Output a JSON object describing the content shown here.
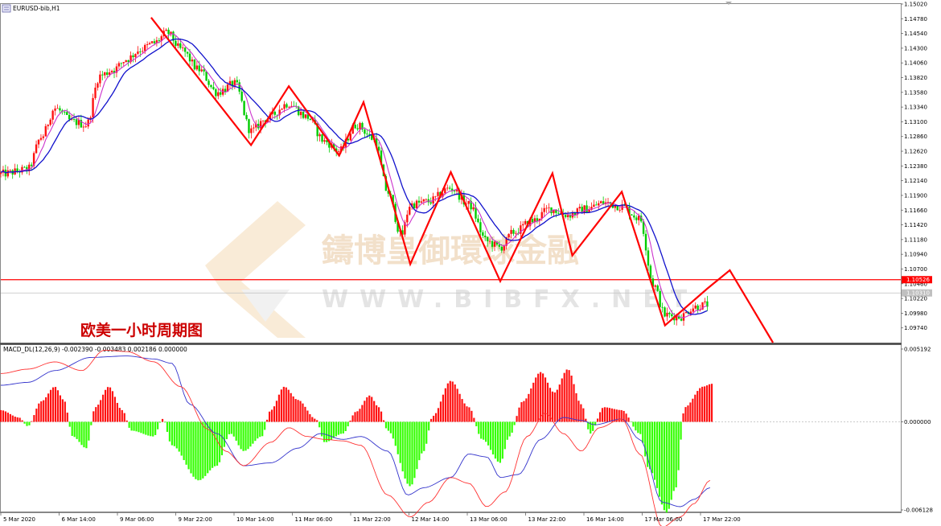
{
  "window": {
    "symbol_label": "EURUSD-bib,H1",
    "caption": "欧美一小时周期图",
    "watermark": {
      "brand": "鑄博皇御環球金融",
      "site": "WWW.BIBFX.NET"
    }
  },
  "colors": {
    "bull": "#ff1111",
    "bear": "#00cc00",
    "ma_fast": "#cc33cc",
    "ma_slow": "#1111cc",
    "zigzag": "#ff0000",
    "level_line": "#ff0000",
    "macd_line": "#3333cc",
    "signal_line": "#ff3333",
    "hist_pos": "#ff1111",
    "hist_neg": "#33ff00"
  },
  "chart_data": [
    {
      "type": "candlestick",
      "title": "EURUSD-bib,H1",
      "ylim": [
        1.095,
        1.1502
      ],
      "price_ticks": [
        "1.15020",
        "1.14780",
        "1.14540",
        "1.14300",
        "1.14060",
        "1.13820",
        "1.13580",
        "1.13340",
        "1.13100",
        "1.12860",
        "1.12620",
        "1.12380",
        "1.12140",
        "1.11900",
        "1.11660",
        "1.11420",
        "1.11180",
        "1.10940",
        "1.10700",
        "1.10460",
        "1.10220",
        "1.09980",
        "1.09740"
      ],
      "level_line": {
        "value": 1.10526,
        "label": "1.10526"
      },
      "current_price": {
        "value": 1.1031,
        "label": "1.10310"
      },
      "time_labels": [
        "5 Mar 2020",
        "6 Mar 14:00",
        "9 Mar 06:00",
        "9 Mar 22:00",
        "10 Mar 14:00",
        "11 Mar 06:00",
        "11 Mar 22:00",
        "12 Mar 14:00",
        "13 Mar 06:00",
        "13 Mar 22:00",
        "16 Mar 14:00",
        "17 Mar 06:00",
        "17 Mar 22:00"
      ],
      "zigzag_points": [
        {
          "t": 0.167,
          "v": 1.148
        },
        {
          "t": 0.278,
          "v": 1.1272
        },
        {
          "t": 0.32,
          "v": 1.1368
        },
        {
          "t": 0.376,
          "v": 1.1255
        },
        {
          "t": 0.403,
          "v": 1.1342
        },
        {
          "t": 0.455,
          "v": 1.1078
        },
        {
          "t": 0.5,
          "v": 1.1228
        },
        {
          "t": 0.555,
          "v": 1.105
        },
        {
          "t": 0.613,
          "v": 1.1226
        },
        {
          "t": 0.635,
          "v": 1.1092
        },
        {
          "t": 0.69,
          "v": 1.1196
        },
        {
          "t": 0.738,
          "v": 1.0978
        },
        {
          "t": 0.785,
          "v": 1.1038
        },
        {
          "t": 0.81,
          "v": 1.1068
        },
        {
          "t": 0.858,
          "v": 1.095
        }
      ],
      "series": [
        {
          "name": "EURUSD",
          "anchors": [
            [
              0.0,
              1.1225
            ],
            [
              0.03,
              1.1232
            ],
            [
              0.045,
              1.1285
            ],
            [
              0.06,
              1.1332
            ],
            [
              0.08,
              1.131
            ],
            [
              0.095,
              1.1305
            ],
            [
              0.11,
              1.1385
            ],
            [
              0.125,
              1.1395
            ],
            [
              0.14,
              1.1412
            ],
            [
              0.155,
              1.1428
            ],
            [
              0.17,
              1.1438
            ],
            [
              0.185,
              1.1455
            ],
            [
              0.2,
              1.1428
            ],
            [
              0.22,
              1.1395
            ],
            [
              0.24,
              1.1358
            ],
            [
              0.26,
              1.1372
            ],
            [
              0.278,
              1.1295
            ],
            [
              0.295,
              1.1315
            ],
            [
              0.32,
              1.134
            ],
            [
              0.34,
              1.1318
            ],
            [
              0.36,
              1.1278
            ],
            [
              0.376,
              1.1262
            ],
            [
              0.395,
              1.1305
            ],
            [
              0.415,
              1.1282
            ],
            [
              0.43,
              1.1195
            ],
            [
              0.445,
              1.1125
            ],
            [
              0.455,
              1.1175
            ],
            [
              0.475,
              1.118
            ],
            [
              0.5,
              1.1202
            ],
            [
              0.52,
              1.1175
            ],
            [
              0.54,
              1.1115
            ],
            [
              0.555,
              1.1105
            ],
            [
              0.57,
              1.113
            ],
            [
              0.59,
              1.1148
            ],
            [
              0.61,
              1.1168
            ],
            [
              0.63,
              1.1158
            ],
            [
              0.65,
              1.1168
            ],
            [
              0.67,
              1.1178
            ],
            [
              0.69,
              1.1172
            ],
            [
              0.71,
              1.1152
            ],
            [
              0.725,
              1.1045
            ],
            [
              0.738,
              1.0995
            ],
            [
              0.755,
              1.0992
            ],
            [
              0.77,
              1.1008
            ],
            [
              0.785,
              1.1012
            ]
          ]
        }
      ]
    },
    {
      "type": "macd",
      "title": "MACD_DL(12,26,9) -0.002390 -0.003483 0.002186 0.000000",
      "ylim": [
        -0.006128,
        0.005192
      ],
      "ticks": [
        "0.005192",
        "0.000000",
        "-0.006128"
      ],
      "series": [
        {
          "name": "histogram",
          "anchors": [
            [
              0.0,
              0.0008
            ],
            [
              0.02,
              0.0003
            ],
            [
              0.03,
              -0.0003
            ],
            [
              0.045,
              0.0014
            ],
            [
              0.06,
              0.0024
            ],
            [
              0.07,
              0.0015
            ],
            [
              0.08,
              -0.001
            ],
            [
              0.095,
              -0.0018
            ],
            [
              0.105,
              0.001
            ],
            [
              0.12,
              0.0024
            ],
            [
              0.135,
              0.0008
            ],
            [
              0.145,
              -0.0006
            ],
            [
              0.17,
              -0.001
            ],
            [
              0.18,
              0.0002
            ],
            [
              0.19,
              -0.0016
            ],
            [
              0.22,
              -0.004
            ],
            [
              0.24,
              -0.003
            ],
            [
              0.255,
              -0.0008
            ],
            [
              0.27,
              -0.002
            ],
            [
              0.29,
              -0.001
            ],
            [
              0.3,
              0.0008
            ],
            [
              0.315,
              0.0024
            ],
            [
              0.33,
              0.0015
            ],
            [
              0.35,
              0.0002
            ],
            [
              0.36,
              -0.0014
            ],
            [
              0.38,
              -0.0008
            ],
            [
              0.395,
              0.0007
            ],
            [
              0.41,
              0.0018
            ],
            [
              0.42,
              0.001
            ],
            [
              0.43,
              -0.0006
            ],
            [
              0.455,
              -0.0044
            ],
            [
              0.47,
              -0.002
            ],
            [
              0.48,
              0.0004
            ],
            [
              0.5,
              0.0028
            ],
            [
              0.52,
              0.001
            ],
            [
              0.535,
              -0.0012
            ],
            [
              0.555,
              -0.0028
            ],
            [
              0.565,
              -0.001
            ],
            [
              0.58,
              0.0014
            ],
            [
              0.6,
              0.0034
            ],
            [
              0.615,
              0.002
            ],
            [
              0.63,
              0.0036
            ],
            [
              0.645,
              0.0012
            ],
            [
              0.655,
              -0.0008
            ],
            [
              0.67,
              0.001
            ],
            [
              0.69,
              0.0008
            ],
            [
              0.71,
              -0.0008
            ],
            [
              0.72,
              -0.0032
            ],
            [
              0.74,
              -0.0062
            ],
            [
              0.75,
              -0.0045
            ],
            [
              0.76,
              0.001
            ],
            [
              0.78,
              0.0024
            ],
            [
              0.79,
              0.0026
            ]
          ]
        },
        {
          "name": "macd",
          "anchors": [
            [
              0.0,
              0.0025
            ],
            [
              0.03,
              0.0027
            ],
            [
              0.06,
              0.0035
            ],
            [
              0.1,
              0.0044
            ],
            [
              0.14,
              0.0045
            ],
            [
              0.17,
              0.0043
            ],
            [
              0.19,
              0.004
            ],
            [
              0.21,
              0.0012
            ],
            [
              0.24,
              -0.0008
            ],
            [
              0.27,
              -0.003
            ],
            [
              0.3,
              -0.0028
            ],
            [
              0.33,
              -0.0018
            ],
            [
              0.355,
              -0.0008
            ],
            [
              0.38,
              -0.0012
            ],
            [
              0.4,
              -0.001
            ],
            [
              0.43,
              -0.002
            ],
            [
              0.452,
              -0.005
            ],
            [
              0.47,
              -0.0045
            ],
            [
              0.5,
              -0.0038
            ],
            [
              0.52,
              -0.0022
            ],
            [
              0.54,
              -0.0024
            ],
            [
              0.555,
              -0.0038
            ],
            [
              0.575,
              -0.0036
            ],
            [
              0.6,
              -0.0012
            ],
            [
              0.625,
              0.0003
            ],
            [
              0.645,
              0.0001
            ],
            [
              0.66,
              -0.0002
            ],
            [
              0.69,
              0.0002
            ],
            [
              0.71,
              -0.0012
            ],
            [
              0.735,
              -0.0055
            ],
            [
              0.755,
              -0.0058
            ],
            [
              0.77,
              -0.0053
            ],
            [
              0.788,
              -0.0045
            ]
          ]
        },
        {
          "name": "signal",
          "anchors": [
            [
              0.0,
              0.0033
            ],
            [
              0.03,
              0.0036
            ],
            [
              0.06,
              0.0041
            ],
            [
              0.09,
              0.0035
            ],
            [
              0.115,
              0.0049
            ],
            [
              0.14,
              0.0048
            ],
            [
              0.17,
              0.0041
            ],
            [
              0.2,
              0.0024
            ],
            [
              0.23,
              -0.0005
            ],
            [
              0.25,
              -0.002
            ],
            [
              0.27,
              -0.003
            ],
            [
              0.3,
              -0.0014
            ],
            [
              0.32,
              -0.0004
            ],
            [
              0.34,
              -0.001
            ],
            [
              0.36,
              -0.0012
            ],
            [
              0.38,
              -0.0013
            ],
            [
              0.4,
              -0.0016
            ],
            [
              0.43,
              -0.005
            ],
            [
              0.455,
              -0.0065
            ],
            [
              0.475,
              -0.0055
            ],
            [
              0.5,
              -0.0038
            ],
            [
              0.52,
              -0.0042
            ],
            [
              0.54,
              -0.0058
            ],
            [
              0.56,
              -0.0048
            ],
            [
              0.585,
              -0.001
            ],
            [
              0.605,
              0.0006
            ],
            [
              0.625,
              -0.0008
            ],
            [
              0.645,
              -0.002
            ],
            [
              0.665,
              -0.0004
            ],
            [
              0.69,
              0.0002
            ],
            [
              0.71,
              -0.0022
            ],
            [
              0.735,
              -0.0072
            ],
            [
              0.755,
              -0.0065
            ],
            [
              0.77,
              -0.0056
            ],
            [
              0.788,
              -0.004
            ]
          ]
        }
      ]
    }
  ]
}
